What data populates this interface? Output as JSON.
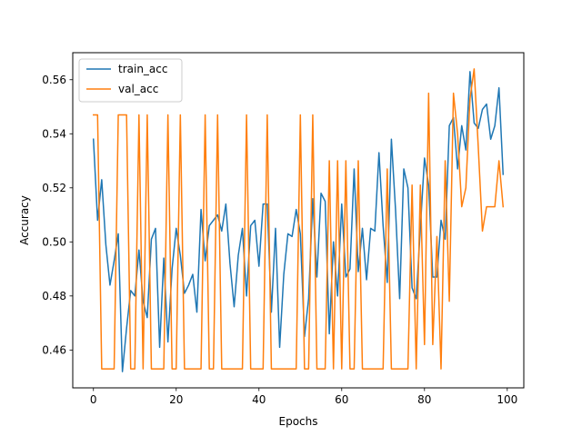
{
  "chart_data": {
    "type": "line",
    "title": "",
    "xlabel": "Epochs",
    "ylabel": "Accuracy",
    "xlim": [
      -5,
      104
    ],
    "ylim": [
      0.446,
      0.57
    ],
    "xticks": [
      0,
      20,
      40,
      60,
      80,
      100
    ],
    "yticks": [
      0.46,
      0.48,
      0.5,
      0.52,
      0.54,
      0.56
    ],
    "xtick_labels": [
      "0",
      "20",
      "40",
      "60",
      "80",
      "100"
    ],
    "ytick_labels": [
      "0.46",
      "0.48",
      "0.50",
      "0.52",
      "0.54",
      "0.56"
    ],
    "grid": false,
    "legend": "top-left",
    "series": [
      {
        "name": "train_acc",
        "color": "#1f77b4",
        "x": [
          0,
          1,
          2,
          3,
          4,
          5,
          6,
          7,
          8,
          9,
          10,
          11,
          12,
          13,
          14,
          15,
          16,
          17,
          18,
          19,
          20,
          21,
          22,
          23,
          24,
          25,
          26,
          27,
          28,
          29,
          30,
          31,
          32,
          33,
          34,
          35,
          36,
          37,
          38,
          39,
          40,
          41,
          42,
          43,
          44,
          45,
          46,
          47,
          48,
          49,
          50,
          51,
          52,
          53,
          54,
          55,
          56,
          57,
          58,
          59,
          60,
          61,
          62,
          63,
          64,
          65,
          66,
          67,
          68,
          69,
          70,
          71,
          72,
          73,
          74,
          75,
          76,
          77,
          78,
          79,
          80,
          81,
          82,
          83,
          84,
          85,
          86,
          87,
          88,
          89,
          90,
          91,
          92,
          93,
          94,
          95,
          96,
          97,
          98,
          99
        ],
        "values": [
          0.538,
          0.508,
          0.523,
          0.499,
          0.484,
          0.493,
          0.503,
          0.452,
          0.468,
          0.482,
          0.48,
          0.497,
          0.478,
          0.472,
          0.501,
          0.505,
          0.461,
          0.494,
          0.463,
          0.49,
          0.505,
          0.495,
          0.481,
          0.484,
          0.488,
          0.474,
          0.512,
          0.493,
          0.506,
          0.508,
          0.51,
          0.504,
          0.514,
          0.492,
          0.476,
          0.495,
          0.505,
          0.48,
          0.506,
          0.508,
          0.491,
          0.514,
          0.514,
          0.474,
          0.505,
          0.461,
          0.488,
          0.503,
          0.502,
          0.512,
          0.503,
          0.465,
          0.479,
          0.516,
          0.487,
          0.518,
          0.515,
          0.466,
          0.5,
          0.48,
          0.514,
          0.487,
          0.49,
          0.527,
          0.489,
          0.505,
          0.486,
          0.505,
          0.504,
          0.533,
          0.506,
          0.485,
          0.538,
          0.512,
          0.479,
          0.527,
          0.52,
          0.483,
          0.479,
          0.505,
          0.531,
          0.521,
          0.487,
          0.487,
          0.508,
          0.501,
          0.543,
          0.546,
          0.527,
          0.543,
          0.534,
          0.563,
          0.544,
          0.542,
          0.549,
          0.551,
          0.538,
          0.543,
          0.557,
          0.525
        ]
      },
      {
        "name": "val_acc",
        "color": "#ff7f0e",
        "x": [
          0,
          1,
          2,
          3,
          4,
          5,
          6,
          7,
          8,
          9,
          10,
          11,
          12,
          13,
          14,
          15,
          16,
          17,
          18,
          19,
          20,
          21,
          22,
          23,
          24,
          25,
          26,
          27,
          28,
          29,
          30,
          31,
          32,
          33,
          34,
          35,
          36,
          37,
          38,
          39,
          40,
          41,
          42,
          43,
          44,
          45,
          46,
          47,
          48,
          49,
          50,
          51,
          52,
          53,
          54,
          55,
          56,
          57,
          58,
          59,
          60,
          61,
          62,
          63,
          64,
          65,
          66,
          67,
          68,
          69,
          70,
          71,
          72,
          73,
          74,
          75,
          76,
          77,
          78,
          79,
          80,
          81,
          82,
          83,
          84,
          85,
          86,
          87,
          88,
          89,
          90,
          91,
          92,
          93,
          94,
          95,
          96,
          97,
          98,
          99
        ],
        "values": [
          0.547,
          0.547,
          0.453,
          0.453,
          0.453,
          0.453,
          0.547,
          0.547,
          0.547,
          0.453,
          0.453,
          0.547,
          0.453,
          0.547,
          0.453,
          0.453,
          0.453,
          0.453,
          0.547,
          0.453,
          0.453,
          0.547,
          0.453,
          0.453,
          0.453,
          0.453,
          0.453,
          0.547,
          0.453,
          0.453,
          0.547,
          0.453,
          0.453,
          0.453,
          0.453,
          0.453,
          0.453,
          0.547,
          0.453,
          0.453,
          0.453,
          0.453,
          0.547,
          0.453,
          0.453,
          0.453,
          0.453,
          0.453,
          0.453,
          0.453,
          0.547,
          0.453,
          0.453,
          0.547,
          0.453,
          0.453,
          0.453,
          0.53,
          0.453,
          0.53,
          0.453,
          0.53,
          0.453,
          0.453,
          0.53,
          0.453,
          0.453,
          0.453,
          0.453,
          0.453,
          0.453,
          0.527,
          0.453,
          0.453,
          0.453,
          0.453,
          0.453,
          0.521,
          0.453,
          0.521,
          0.462,
          0.555,
          0.462,
          0.502,
          0.453,
          0.53,
          0.478,
          0.555,
          0.54,
          0.513,
          0.52,
          0.553,
          0.564,
          0.535,
          0.504,
          0.513,
          0.513,
          0.513,
          0.53,
          0.513
        ]
      }
    ]
  }
}
